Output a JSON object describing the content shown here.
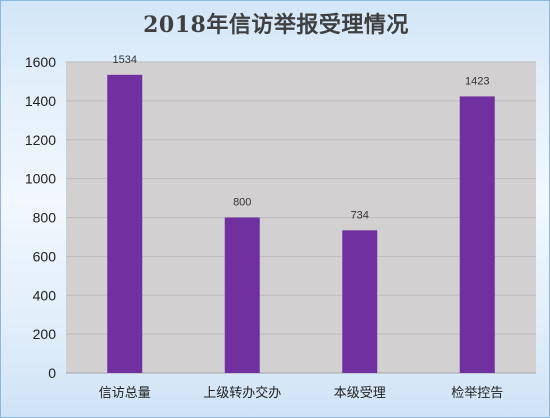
{
  "chart_data": {
    "type": "bar",
    "title": "2018年信访举报受理情况",
    "categories": [
      "信访总量",
      "上级转办交办",
      "本级受理",
      "检举控告"
    ],
    "values": [
      1534,
      800,
      734,
      1423
    ],
    "data_labels": [
      "1534",
      "800",
      "734",
      "1423"
    ],
    "ylim": [
      0,
      1600
    ],
    "yticks": [
      "0",
      "200",
      "400",
      "600",
      "800",
      "1000",
      "1200",
      "1400",
      "1600"
    ],
    "xlabel": "",
    "ylabel": "",
    "grid": true,
    "legend": "none",
    "colors": {
      "bar": "#7030a0",
      "plot_area": "#d3d0d2",
      "gridline": "#bdbabc"
    }
  }
}
